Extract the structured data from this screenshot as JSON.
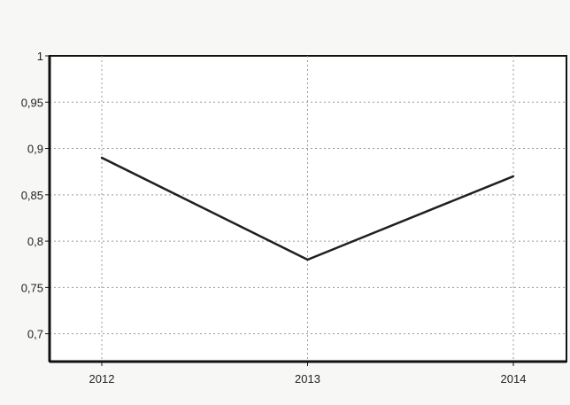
{
  "chart_data": {
    "type": "line",
    "title": "",
    "xlabel": "",
    "ylabel": "",
    "x": [
      "2012",
      "2013",
      "2014"
    ],
    "series": [
      {
        "values": [
          0.89,
          0.78,
          0.87
        ]
      }
    ],
    "ylim": [
      0.67,
      1.0
    ],
    "yticks": [
      1,
      0.95,
      0.9,
      0.85,
      0.8,
      0.75,
      0.7
    ],
    "ytick_labels": [
      "1",
      "0,95",
      "0,9",
      "0,85",
      "0,8",
      "0,75",
      "0,7"
    ],
    "grid": true,
    "legend": "none",
    "colors": {
      "line": "#1f1f1f",
      "axis": "#111111",
      "grid": "#9a9a9a",
      "plot_background": "#ffffff"
    }
  }
}
